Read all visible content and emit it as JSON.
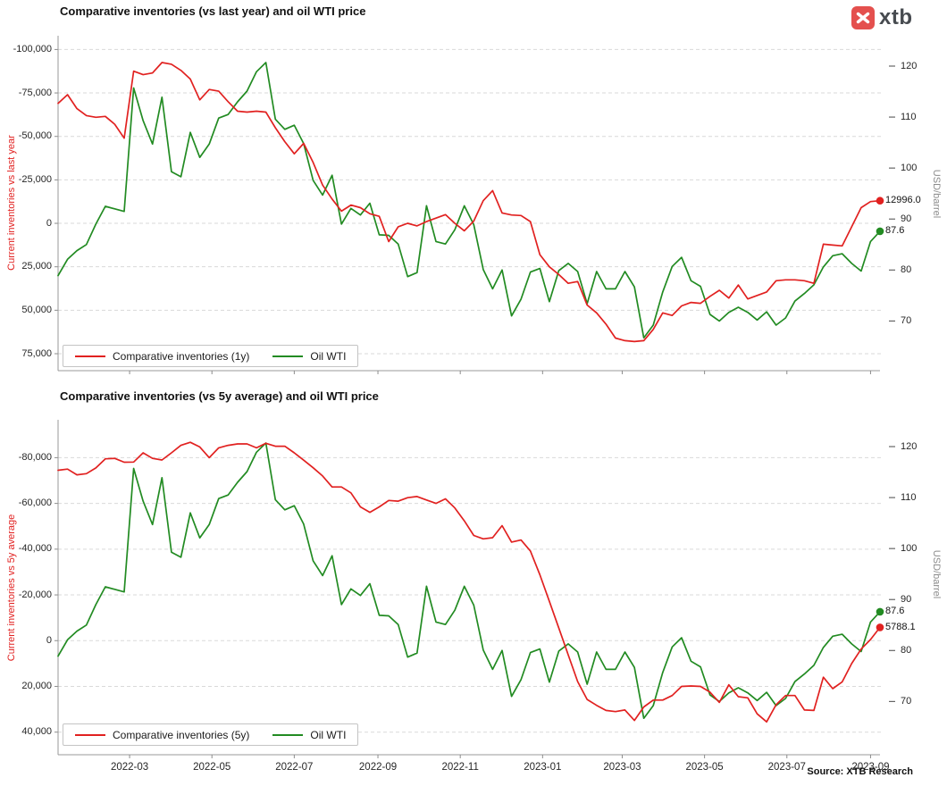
{
  "logo": {
    "text": "xtb"
  },
  "source": "Source: XTB Research",
  "colors": {
    "inventories": "#e12120",
    "oil": "#228b22",
    "grid": "#d9d9d9",
    "axis_line": "#999999",
    "tick_mark": "#8c8c8c",
    "logo_red": "#e4504e",
    "logo_text": "#474b50"
  },
  "x_tick_labels": [
    "2022-03",
    "2022-05",
    "2022-07",
    "2022-09",
    "2022-11",
    "2023-01",
    "2023-03",
    "2023-05",
    "2023-07",
    "2023-09"
  ],
  "chart_data": [
    {
      "type": "line",
      "title": "Comparative inventories (vs last year) and oil WTI price",
      "grid": "dashed-horizontal",
      "legend_position": "bottom-left",
      "x": [
        "2022-01-07",
        "2022-01-14",
        "2022-01-21",
        "2022-01-28",
        "2022-02-04",
        "2022-02-11",
        "2022-02-18",
        "2022-02-25",
        "2022-03-04",
        "2022-03-11",
        "2022-03-18",
        "2022-03-25",
        "2022-04-01",
        "2022-04-08",
        "2022-04-15",
        "2022-04-22",
        "2022-04-29",
        "2022-05-06",
        "2022-05-13",
        "2022-05-20",
        "2022-05-27",
        "2022-06-03",
        "2022-06-10",
        "2022-06-17",
        "2022-06-24",
        "2022-07-01",
        "2022-07-08",
        "2022-07-15",
        "2022-07-22",
        "2022-07-29",
        "2022-08-05",
        "2022-08-12",
        "2022-08-19",
        "2022-08-26",
        "2022-09-02",
        "2022-09-09",
        "2022-09-16",
        "2022-09-23",
        "2022-09-30",
        "2022-10-07",
        "2022-10-14",
        "2022-10-21",
        "2022-10-28",
        "2022-11-04",
        "2022-11-11",
        "2022-11-18",
        "2022-11-25",
        "2022-12-02",
        "2022-12-09",
        "2022-12-16",
        "2022-12-23",
        "2022-12-30",
        "2023-01-06",
        "2023-01-13",
        "2023-01-20",
        "2023-01-27",
        "2023-02-03",
        "2023-02-10",
        "2023-02-17",
        "2023-02-24",
        "2023-03-03",
        "2023-03-10",
        "2023-03-17",
        "2023-03-24",
        "2023-03-31",
        "2023-04-07",
        "2023-04-14",
        "2023-04-21",
        "2023-04-28",
        "2023-05-05",
        "2023-05-12",
        "2023-05-19",
        "2023-05-26",
        "2023-06-02",
        "2023-06-09",
        "2023-06-16",
        "2023-06-23",
        "2023-06-30",
        "2023-07-07",
        "2023-07-14",
        "2023-07-21",
        "2023-07-28",
        "2023-08-04",
        "2023-08-11",
        "2023-08-18",
        "2023-08-25",
        "2023-09-01",
        "2023-09-08"
      ],
      "left_axis": {
        "title": "Current inventories vs last year",
        "inverted": true,
        "range": [
          -100000,
          75000
        ],
        "ticks": [
          {
            "v": -100000,
            "label": "-100,000"
          },
          {
            "v": -75000,
            "label": "-75,000"
          },
          {
            "v": -50000,
            "label": "-50,000"
          },
          {
            "v": -25000,
            "label": "-25,000"
          },
          {
            "v": 0,
            "label": "0"
          },
          {
            "v": 25000,
            "label": "25,000"
          },
          {
            "v": 50000,
            "label": "50,000"
          },
          {
            "v": 75000,
            "label": "75,000"
          }
        ]
      },
      "right_axis": {
        "title": "USD/barrel",
        "range": [
          120,
          70
        ],
        "ticks": [
          {
            "v": 120,
            "label": "120"
          },
          {
            "v": 110,
            "label": "110"
          },
          {
            "v": 100,
            "label": "100"
          },
          {
            "v": 90,
            "label": "90"
          },
          {
            "v": 80,
            "label": "80"
          },
          {
            "v": 70,
            "label": "70"
          }
        ]
      },
      "series": [
        {
          "name": "Comparative inventories (1y)",
          "axis": "left",
          "color_key": "inventories",
          "end_label": "12996.0",
          "values": [
            -69000,
            -74000,
            -66000,
            -62000,
            -61000,
            -61500,
            -57000,
            -49000,
            -87500,
            -85500,
            -86500,
            -92500,
            -91500,
            -88000,
            -83000,
            -71000,
            -77000,
            -76000,
            -70000,
            -64500,
            -64000,
            -64500,
            -64000,
            -55000,
            -47000,
            -40000,
            -46000,
            -35000,
            -22000,
            -14000,
            -7000,
            -10500,
            -9000,
            -5500,
            -4000,
            10500,
            2000,
            0,
            1500,
            -1000,
            -3000,
            -5000,
            0,
            4300,
            -1300,
            -13000,
            -18800,
            -6000,
            -4800,
            -4500,
            -1000,
            18000,
            25000,
            29500,
            34500,
            33500,
            47000,
            51500,
            58000,
            66000,
            67500,
            68000,
            67500,
            61000,
            51500,
            53000,
            47500,
            45500,
            46000,
            42000,
            38500,
            43000,
            35500,
            43500,
            41500,
            39500,
            33000,
            32500,
            32500,
            33000,
            34500,
            12000,
            12500,
            13000,
            2000,
            -9000,
            -12500,
            -12996
          ]
        },
        {
          "name": "Oil WTI",
          "axis": "right",
          "color_key": "oil",
          "end_label": "87.6",
          "values": [
            78.9,
            82.1,
            83.8,
            85.0,
            89.0,
            92.5,
            92.0,
            91.5,
            115.7,
            109.3,
            104.7,
            113.9,
            99.3,
            98.3,
            107.0,
            102.1,
            104.7,
            109.8,
            110.5,
            113.0,
            115.1,
            118.9,
            120.7,
            109.6,
            107.6,
            108.4,
            104.8,
            97.6,
            94.7,
            98.6,
            89.0,
            92.1,
            90.8,
            93.1,
            86.9,
            86.8,
            85.1,
            78.7,
            79.5,
            92.6,
            85.6,
            85.1,
            87.9,
            92.6,
            88.9,
            80.1,
            76.3,
            80.0,
            71.0,
            74.3,
            79.6,
            80.3,
            73.8,
            79.9,
            81.3,
            79.7,
            73.4,
            79.7,
            76.3,
            76.3,
            79.7,
            76.7,
            66.7,
            69.2,
            75.7,
            80.7,
            82.5,
            77.9,
            76.8,
            71.3,
            70.0,
            71.7,
            72.7,
            71.7,
            70.2,
            71.8,
            69.2,
            70.6,
            73.9,
            75.4,
            77.1,
            80.6,
            82.8,
            83.2,
            81.3,
            79.8,
            85.6,
            87.6
          ]
        }
      ]
    },
    {
      "type": "line",
      "title": "Comparative inventories (vs 5y average) and oil WTI price",
      "grid": "dashed-horizontal",
      "legend_position": "bottom-left",
      "x": [
        "2022-01-07",
        "2022-01-14",
        "2022-01-21",
        "2022-01-28",
        "2022-02-04",
        "2022-02-11",
        "2022-02-18",
        "2022-02-25",
        "2022-03-04",
        "2022-03-11",
        "2022-03-18",
        "2022-03-25",
        "2022-04-01",
        "2022-04-08",
        "2022-04-15",
        "2022-04-22",
        "2022-04-29",
        "2022-05-06",
        "2022-05-13",
        "2022-05-20",
        "2022-05-27",
        "2022-06-03",
        "2022-06-10",
        "2022-06-17",
        "2022-06-24",
        "2022-07-01",
        "2022-07-08",
        "2022-07-15",
        "2022-07-22",
        "2022-07-29",
        "2022-08-05",
        "2022-08-12",
        "2022-08-19",
        "2022-08-26",
        "2022-09-02",
        "2022-09-09",
        "2022-09-16",
        "2022-09-23",
        "2022-09-30",
        "2022-10-07",
        "2022-10-14",
        "2022-10-21",
        "2022-10-28",
        "2022-11-04",
        "2022-11-11",
        "2022-11-18",
        "2022-11-25",
        "2022-12-02",
        "2022-12-09",
        "2022-12-16",
        "2022-12-23",
        "2022-12-30",
        "2023-01-06",
        "2023-01-13",
        "2023-01-20",
        "2023-01-27",
        "2023-02-03",
        "2023-02-10",
        "2023-02-17",
        "2023-02-24",
        "2023-03-03",
        "2023-03-10",
        "2023-03-17",
        "2023-03-24",
        "2023-03-31",
        "2023-04-07",
        "2023-04-14",
        "2023-04-21",
        "2023-04-28",
        "2023-05-05",
        "2023-05-12",
        "2023-05-19",
        "2023-05-26",
        "2023-06-02",
        "2023-06-09",
        "2023-06-16",
        "2023-06-23",
        "2023-06-30",
        "2023-07-07",
        "2023-07-14",
        "2023-07-21",
        "2023-07-28",
        "2023-08-04",
        "2023-08-11",
        "2023-08-18",
        "2023-08-25",
        "2023-09-01",
        "2023-09-08"
      ],
      "left_axis": {
        "title": "Current inventories vs 5y average",
        "inverted": true,
        "range": [
          -80000,
          40000
        ],
        "ticks": [
          {
            "v": -80000,
            "label": "-80,000"
          },
          {
            "v": -60000,
            "label": "-60,000"
          },
          {
            "v": -40000,
            "label": "-40,000"
          },
          {
            "v": -20000,
            "label": "-20,000"
          },
          {
            "v": 0,
            "label": "0"
          },
          {
            "v": 20000,
            "label": "20,000"
          },
          {
            "v": 40000,
            "label": "40,000"
          }
        ]
      },
      "right_axis": {
        "title": "USD/barrel",
        "range": [
          120,
          70
        ],
        "ticks": [
          {
            "v": 120,
            "label": "120"
          },
          {
            "v": 110,
            "label": "110"
          },
          {
            "v": 100,
            "label": "100"
          },
          {
            "v": 90,
            "label": "90"
          },
          {
            "v": 80,
            "label": "80"
          },
          {
            "v": 70,
            "label": "70"
          }
        ]
      },
      "series": [
        {
          "name": "Comparative inventories (5y)",
          "axis": "left",
          "color_key": "inventories",
          "end_label": "5788.1",
          "values": [
            -74500,
            -75000,
            -72500,
            -73000,
            -75500,
            -79500,
            -79700,
            -78000,
            -78100,
            -82100,
            -79700,
            -79000,
            -82100,
            -85400,
            -86700,
            -84700,
            -80000,
            -84300,
            -85400,
            -86000,
            -86000,
            -84300,
            -86300,
            -85000,
            -85000,
            -82100,
            -78900,
            -75600,
            -72000,
            -67200,
            -67200,
            -64600,
            -58500,
            -56100,
            -58500,
            -61300,
            -61000,
            -62500,
            -63000,
            -61500,
            -60000,
            -62000,
            -58000,
            -52400,
            -46000,
            -44500,
            -45000,
            -50300,
            -43100,
            -44000,
            -39200,
            -28800,
            -17200,
            -5500,
            6200,
            17900,
            25700,
            28300,
            30500,
            31000,
            30300,
            34900,
            29000,
            26000,
            26000,
            24000,
            20000,
            19800,
            20000,
            22500,
            27000,
            19300,
            24500,
            25000,
            32000,
            35500,
            28000,
            24000,
            24000,
            30300,
            30500,
            16000,
            21000,
            18000,
            10000,
            3700,
            -500,
            -5788
          ]
        },
        {
          "name": "Oil WTI",
          "axis": "right",
          "color_key": "oil",
          "end_label": "87.6",
          "values": [
            78.9,
            82.1,
            83.8,
            85.0,
            89.0,
            92.5,
            92.0,
            91.5,
            115.7,
            109.3,
            104.7,
            113.9,
            99.3,
            98.3,
            107.0,
            102.1,
            104.7,
            109.8,
            110.5,
            113.0,
            115.1,
            118.9,
            120.7,
            109.6,
            107.6,
            108.4,
            104.8,
            97.6,
            94.7,
            98.6,
            89.0,
            92.1,
            90.8,
            93.1,
            86.9,
            86.8,
            85.1,
            78.7,
            79.5,
            92.6,
            85.6,
            85.1,
            87.9,
            92.6,
            88.9,
            80.1,
            76.3,
            80.0,
            71.0,
            74.3,
            79.6,
            80.3,
            73.8,
            79.9,
            81.3,
            79.7,
            73.4,
            79.7,
            76.3,
            76.3,
            79.7,
            76.7,
            66.7,
            69.2,
            75.7,
            80.7,
            82.5,
            77.9,
            76.8,
            71.3,
            70.0,
            71.7,
            72.7,
            71.7,
            70.2,
            71.8,
            69.2,
            70.6,
            73.9,
            75.4,
            77.1,
            80.6,
            82.8,
            83.2,
            81.3,
            79.8,
            85.6,
            87.6
          ]
        }
      ]
    }
  ]
}
